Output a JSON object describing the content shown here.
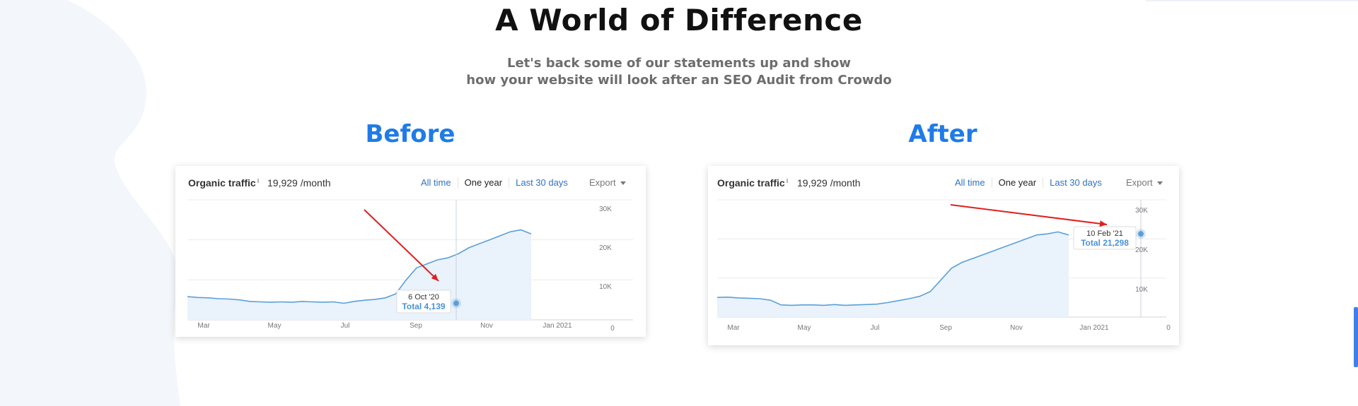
{
  "page": {
    "title": "A World of Difference",
    "subtitle_line1": "Let's back some of our statements up and show",
    "subtitle_line2": "how your website will look after an SEO Audit from Crowdo"
  },
  "colors": {
    "accent_blue": "#1f7be8",
    "series_line": "#5aa0d8",
    "series_fill": "#eaf2fb",
    "arrow_red": "#e02020",
    "blob": "#f3f7fc"
  },
  "panes": [
    {
      "label": "Before",
      "card": {
        "metric_label": "Organic traffic",
        "info_mark": "i",
        "metric_value": "19,929 /month",
        "tabs": [
          "All time",
          "One year",
          "Last 30 days"
        ],
        "active_tab": "One year",
        "export_label": "Export",
        "tooltip_date": "6 Oct '20",
        "tooltip_total": "Total 4,139"
      },
      "chart_data": {
        "type": "area",
        "title": "",
        "x_tick_labels": [
          "Mar",
          "May",
          "Jul",
          "Sep",
          "Nov",
          "Jan 2021"
        ],
        "y_tick_labels": [
          "30K",
          "20K",
          "10K",
          "0"
        ],
        "ylim": [
          0,
          30000
        ],
        "grid": true,
        "highlight": {
          "date": "6 Oct '20",
          "value": 4139
        },
        "series": [
          {
            "values": [
              5800,
              5600,
              5500,
              5300,
              5200,
              5000,
              4600,
              4500,
              4400,
              4500,
              4400,
              4600,
              4500,
              4400,
              4500,
              4139,
              4600,
              4900,
              5100,
              5500,
              6500,
              10000,
              13000,
              14000,
              15000,
              15500,
              16500,
              18000,
              19000,
              20000,
              21000,
              22000,
              22500,
              21500
            ]
          }
        ]
      }
    },
    {
      "label": "After",
      "card": {
        "metric_label": "Organic traffic",
        "info_mark": "i",
        "metric_value": "19,929 /month",
        "tabs": [
          "All time",
          "One year",
          "Last 30 days"
        ],
        "active_tab": "One year",
        "export_label": "Export",
        "tooltip_date": "10 Feb '21",
        "tooltip_total": "Total 21,298"
      },
      "chart_data": {
        "type": "area",
        "title": "",
        "x_tick_labels": [
          "Mar",
          "May",
          "Jul",
          "Sep",
          "Nov",
          "Jan 2021",
          "0"
        ],
        "y_tick_labels": [
          "30K",
          "20K",
          "10K"
        ],
        "ylim": [
          0,
          30000
        ],
        "grid": true,
        "highlight": {
          "date": "10 Feb '21",
          "value": 21298
        },
        "series": [
          {
            "values": [
              5000,
              5100,
              4900,
              4800,
              4700,
              4300,
              3100,
              3000,
              3100,
              3100,
              3000,
              3200,
              3000,
              3100,
              3200,
              3300,
              3700,
              4200,
              4700,
              5300,
              6500,
              9500,
              12500,
              14000,
              15000,
              16000,
              17000,
              18000,
              19000,
              20000,
              21000,
              21298,
              21800,
              21000
            ]
          }
        ]
      }
    }
  ]
}
